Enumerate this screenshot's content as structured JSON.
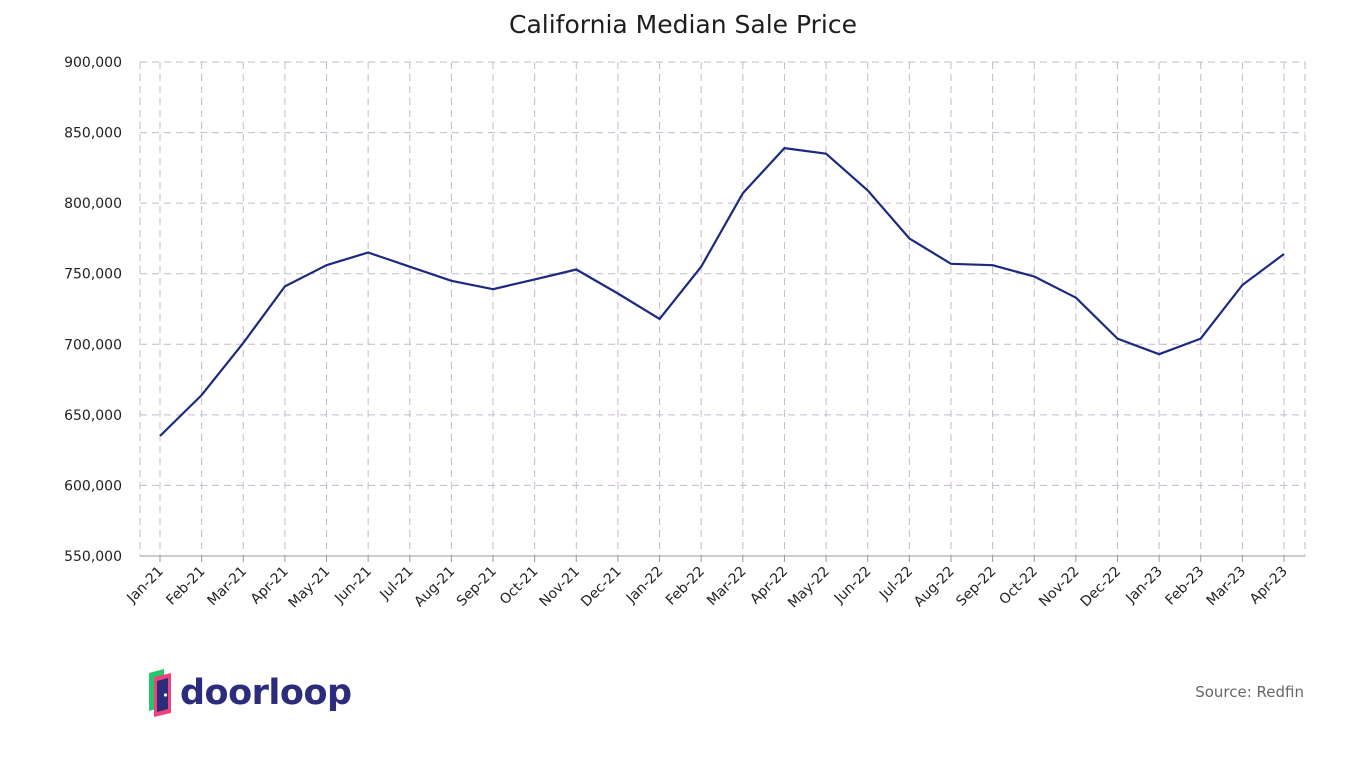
{
  "logo": {
    "text": "doorloop",
    "colors": [
      "#24c76f",
      "#f0437a",
      "#2b2c7c"
    ]
  },
  "source": "Source: Redfin",
  "chart_data": {
    "type": "line",
    "title": "California Median Sale Price",
    "xlabel": "",
    "ylabel": "",
    "ylim": [
      550000,
      900000
    ],
    "yticks": [
      550000,
      600000,
      650000,
      700000,
      750000,
      800000,
      850000,
      900000
    ],
    "ytick_labels": [
      "550,000",
      "600,000",
      "650,000",
      "700,000",
      "750,000",
      "800,000",
      "850,000",
      "900,000"
    ],
    "grid": true,
    "categories": [
      "Jan-21",
      "Feb-21",
      "Mar-21",
      "Apr-21",
      "May-21",
      "Jun-21",
      "Jul-21",
      "Aug-21",
      "Sep-21",
      "Oct-21",
      "Nov-21",
      "Dec-21",
      "Jan-22",
      "Feb-22",
      "Mar-22",
      "Apr-22",
      "May-22",
      "Jun-22",
      "Jul-22",
      "Aug-22",
      "Sep-22",
      "Oct-22",
      "Nov-22",
      "Dec-22",
      "Jan-23",
      "Feb-23",
      "Mar-23",
      "Apr-23"
    ],
    "series": [
      {
        "color": "#1b2a80",
        "values": [
          635000,
          664000,
          701000,
          741000,
          756000,
          765000,
          755000,
          745000,
          739000,
          746000,
          753000,
          736000,
          718000,
          755000,
          807000,
          839000,
          835000,
          809000,
          775000,
          757000,
          756000,
          748000,
          733000,
          704000,
          693000,
          704000,
          742000,
          764000
        ]
      }
    ]
  }
}
